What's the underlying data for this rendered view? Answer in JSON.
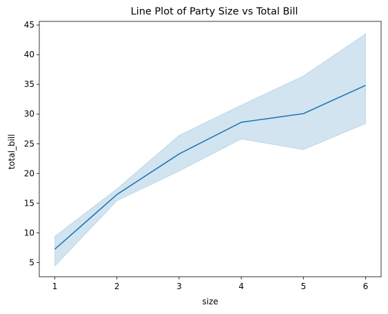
{
  "chart_data": {
    "type": "line",
    "title": "Line Plot of Party Size vs Total Bill",
    "xlabel": "size",
    "ylabel": "total_bill",
    "xlim": [
      0.75,
      6.25
    ],
    "ylim": [
      2.6,
      45.6
    ],
    "xticks": [
      1,
      2,
      3,
      4,
      5,
      6
    ],
    "yticks": [
      5,
      10,
      15,
      20,
      25,
      30,
      35,
      40,
      45
    ],
    "grid": false,
    "series": [
      {
        "x": [
          1,
          2,
          3,
          4,
          5,
          6
        ],
        "values": [
          7.24,
          16.45,
          23.28,
          28.61,
          30.07,
          34.83
        ],
        "ci_lower": [
          4.4,
          15.4,
          20.4,
          25.8,
          24.0,
          28.4
        ],
        "ci_upper": [
          9.4,
          17.4,
          26.4,
          31.5,
          36.4,
          43.5
        ],
        "color": "#1f77b4"
      }
    ]
  }
}
